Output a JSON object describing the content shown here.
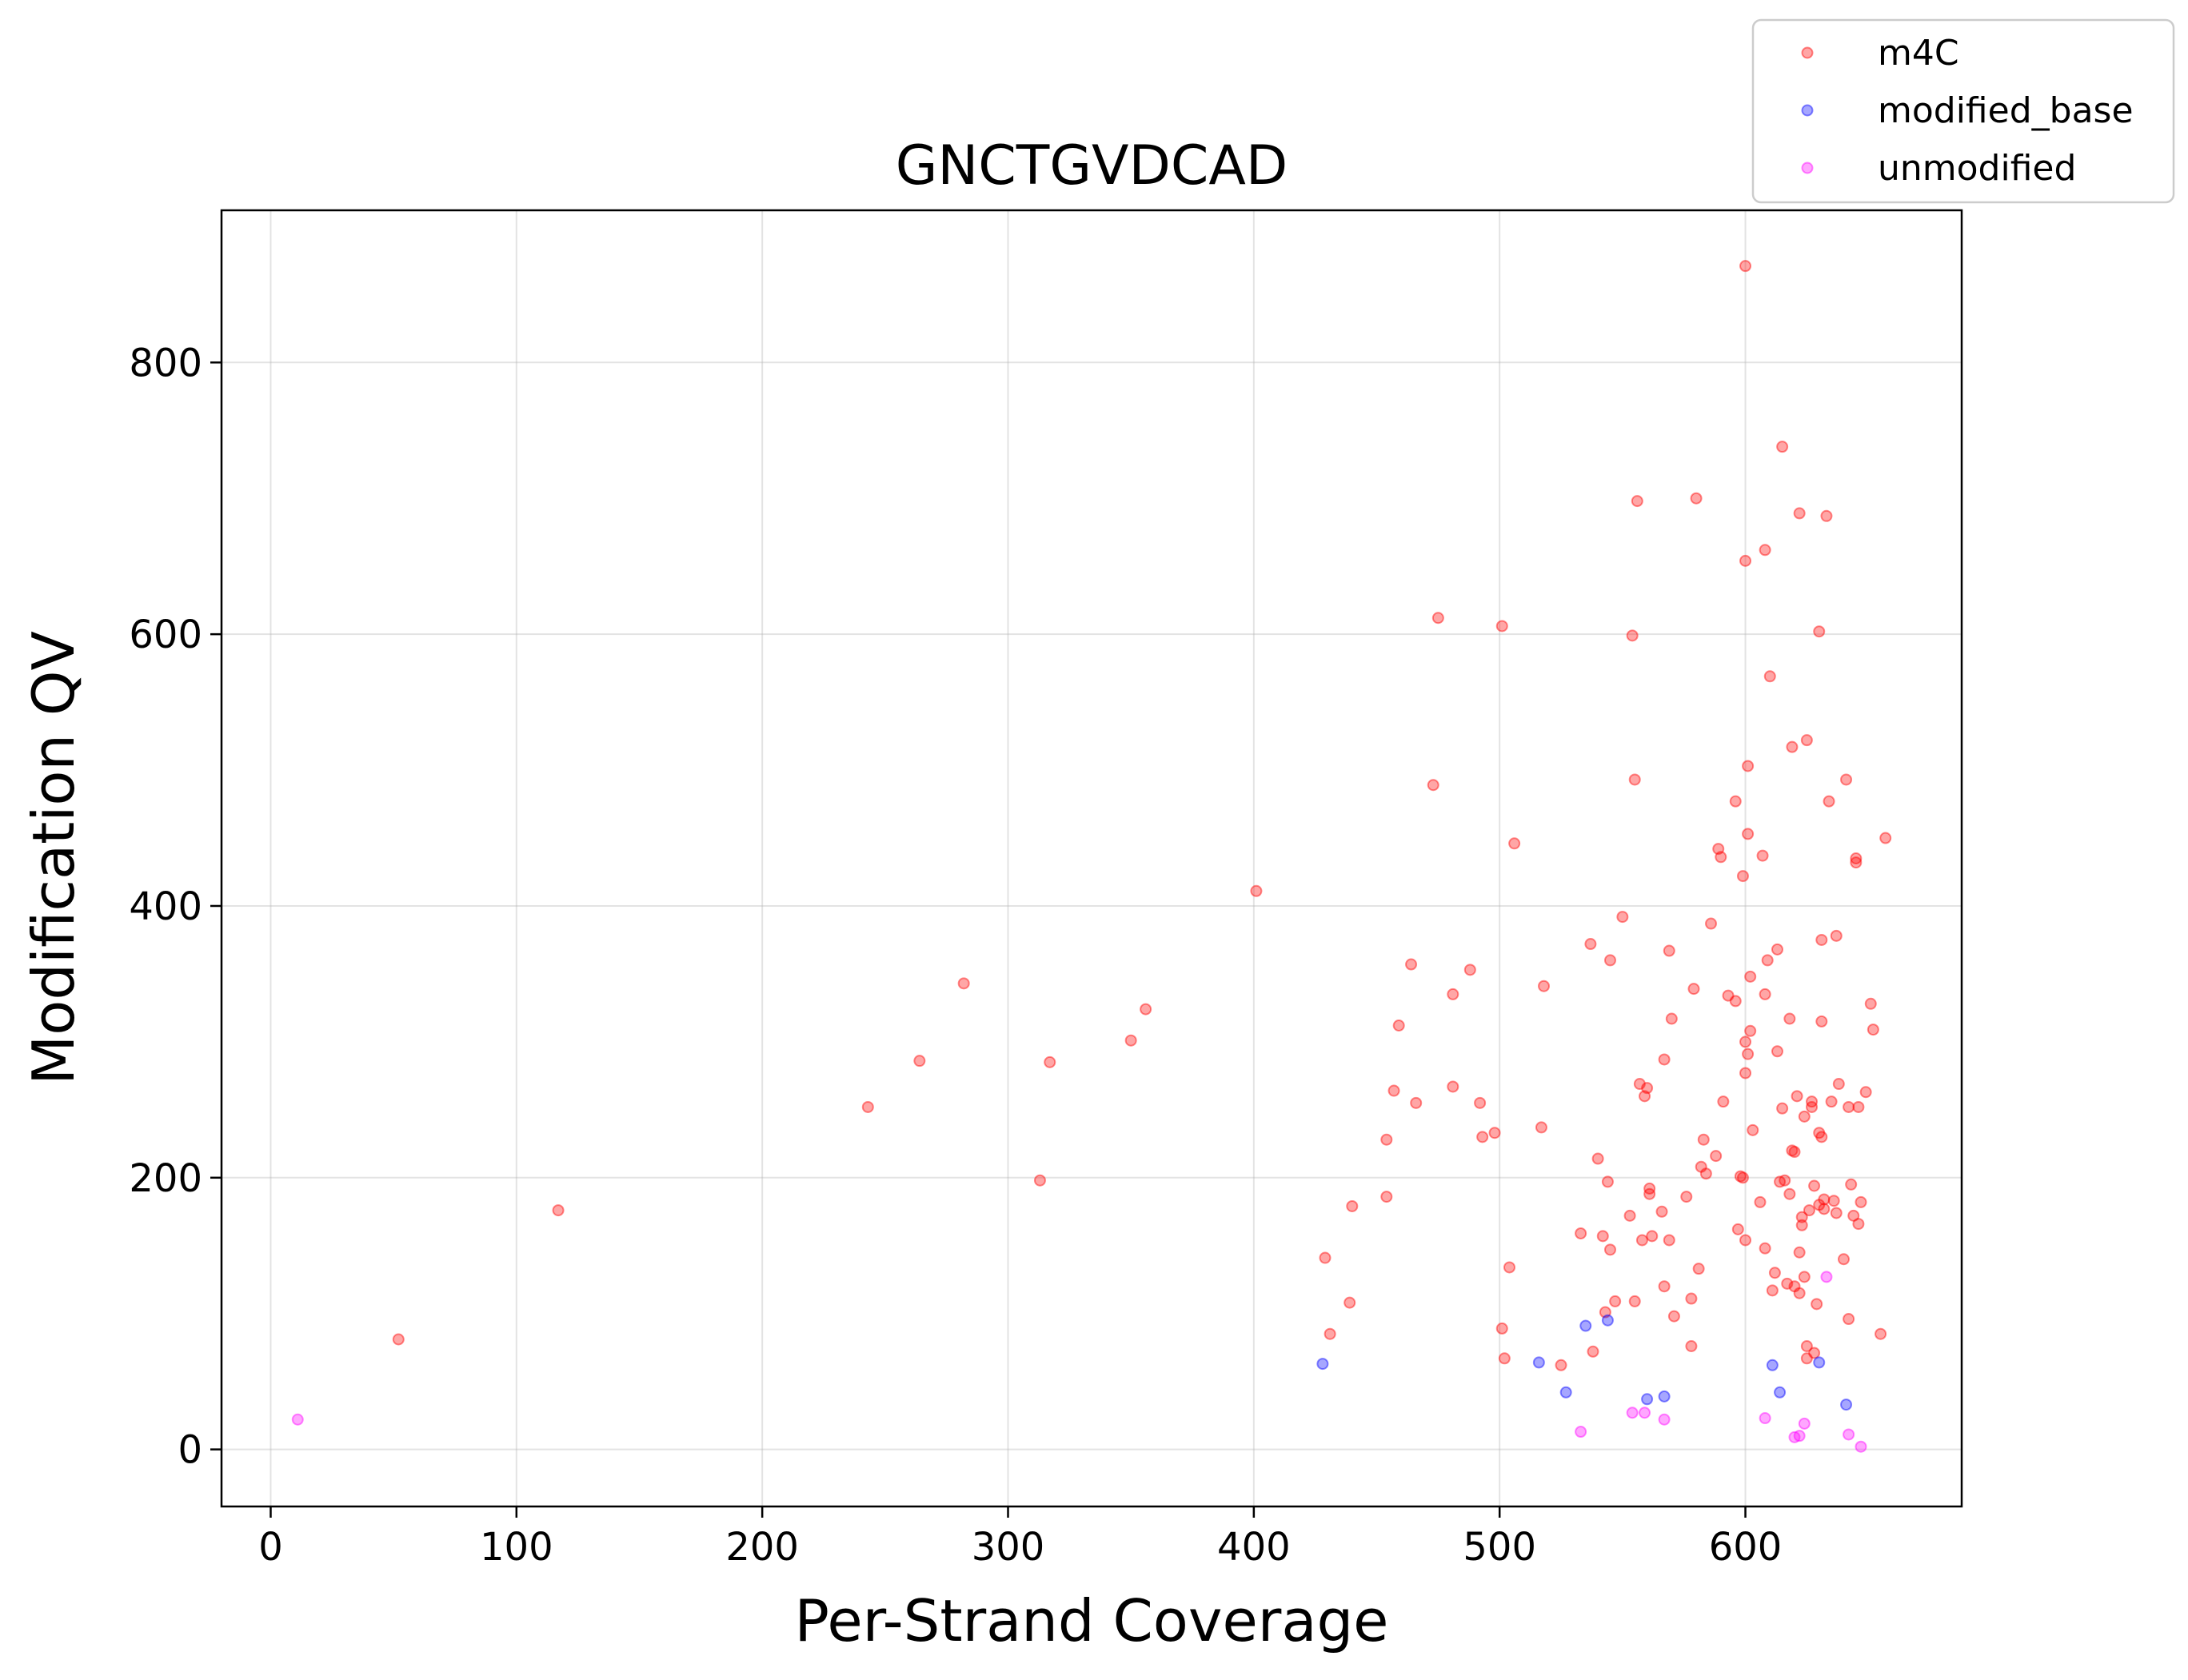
{
  "chart_data": {
    "type": "scatter",
    "title": "GNCTGVDCAD",
    "xlabel": "Per-Strand Coverage",
    "ylabel": "Modification QV",
    "xlim": [
      -20,
      688
    ],
    "ylim": [
      -42,
      912
    ],
    "xticks": [
      0,
      100,
      200,
      300,
      400,
      500,
      600
    ],
    "yticks": [
      0,
      200,
      400,
      600,
      800
    ],
    "grid": true,
    "legend_position": "top-right (outside axes)",
    "series": [
      {
        "name": "m4C",
        "color": "#ff0000",
        "points": [
          [
            52,
            81
          ],
          [
            117,
            176
          ],
          [
            243,
            252
          ],
          [
            264,
            286
          ],
          [
            282,
            343
          ],
          [
            313,
            198
          ],
          [
            317,
            285
          ],
          [
            350,
            301
          ],
          [
            356,
            324
          ],
          [
            401,
            411
          ],
          [
            429,
            141
          ],
          [
            431,
            85
          ],
          [
            439,
            108
          ],
          [
            440,
            179
          ],
          [
            454,
            228
          ],
          [
            454,
            186
          ],
          [
            457,
            264
          ],
          [
            459,
            312
          ],
          [
            464,
            357
          ],
          [
            466,
            255
          ],
          [
            473,
            489
          ],
          [
            475,
            612
          ],
          [
            481,
            335
          ],
          [
            481,
            267
          ],
          [
            488,
            353
          ],
          [
            492,
            255
          ],
          [
            493,
            230
          ],
          [
            498,
            233
          ],
          [
            501,
            606
          ],
          [
            501,
            89
          ],
          [
            502,
            67
          ],
          [
            504,
            134
          ],
          [
            506,
            446
          ],
          [
            517,
            237
          ],
          [
            518,
            341
          ],
          [
            525,
            62
          ],
          [
            533,
            159
          ],
          [
            537,
            372
          ],
          [
            538,
            72
          ],
          [
            540,
            214
          ],
          [
            542,
            157
          ],
          [
            543,
            101
          ],
          [
            544,
            197
          ],
          [
            545,
            360
          ],
          [
            545,
            147
          ],
          [
            547,
            109
          ],
          [
            550,
            392
          ],
          [
            553,
            172
          ],
          [
            554,
            599
          ],
          [
            555,
            493
          ],
          [
            555,
            109
          ],
          [
            556,
            698
          ],
          [
            557,
            269
          ],
          [
            558,
            154
          ],
          [
            559,
            260
          ],
          [
            560,
            266
          ],
          [
            561,
            192
          ],
          [
            561,
            188
          ],
          [
            562,
            157
          ],
          [
            566,
            175
          ],
          [
            567,
            120
          ],
          [
            567,
            287
          ],
          [
            569,
            367
          ],
          [
            569,
            154
          ],
          [
            570,
            317
          ],
          [
            571,
            98
          ],
          [
            576,
            186
          ],
          [
            578,
            76
          ],
          [
            578,
            111
          ],
          [
            579,
            339
          ],
          [
            580,
            700
          ],
          [
            581,
            133
          ],
          [
            582,
            208
          ],
          [
            583,
            228
          ],
          [
            584,
            203
          ],
          [
            586,
            387
          ],
          [
            588,
            216
          ],
          [
            589,
            442
          ],
          [
            590,
            436
          ],
          [
            591,
            256
          ],
          [
            593,
            334
          ],
          [
            596,
            477
          ],
          [
            596,
            330
          ],
          [
            597,
            162
          ],
          [
            598,
            201
          ],
          [
            599,
            422
          ],
          [
            599,
            200
          ],
          [
            600,
            871
          ],
          [
            600,
            654
          ],
          [
            600,
            300
          ],
          [
            600,
            277
          ],
          [
            600,
            154
          ],
          [
            601,
            291
          ],
          [
            601,
            503
          ],
          [
            601,
            453
          ],
          [
            602,
            348
          ],
          [
            602,
            308
          ],
          [
            603,
            235
          ],
          [
            606,
            182
          ],
          [
            607,
            437
          ],
          [
            608,
            662
          ],
          [
            608,
            335
          ],
          [
            608,
            148
          ],
          [
            609,
            360
          ],
          [
            610,
            569
          ],
          [
            611,
            117
          ],
          [
            612,
            130
          ],
          [
            613,
            368
          ],
          [
            613,
            293
          ],
          [
            614,
            197
          ],
          [
            615,
            738
          ],
          [
            615,
            251
          ],
          [
            616,
            198
          ],
          [
            617,
            122
          ],
          [
            618,
            317
          ],
          [
            618,
            188
          ],
          [
            619,
            517
          ],
          [
            619,
            220
          ],
          [
            620,
            219
          ],
          [
            620,
            120
          ],
          [
            621,
            260
          ],
          [
            622,
            689
          ],
          [
            622,
            145
          ],
          [
            622,
            115
          ],
          [
            623,
            171
          ],
          [
            623,
            165
          ],
          [
            624,
            127
          ],
          [
            624,
            245
          ],
          [
            625,
            522
          ],
          [
            625,
            76
          ],
          [
            625,
            67
          ],
          [
            626,
            176
          ],
          [
            627,
            256
          ],
          [
            627,
            252
          ],
          [
            628,
            194
          ],
          [
            628,
            71
          ],
          [
            629,
            107
          ],
          [
            630,
            602
          ],
          [
            630,
            233
          ],
          [
            630,
            180
          ],
          [
            631,
            375
          ],
          [
            631,
            230
          ],
          [
            631,
            315
          ],
          [
            632,
            177
          ],
          [
            632,
            184
          ],
          [
            633,
            687
          ],
          [
            634,
            477
          ],
          [
            635,
            256
          ],
          [
            636,
            183
          ],
          [
            637,
            378
          ],
          [
            637,
            174
          ],
          [
            638,
            269
          ],
          [
            640,
            140
          ],
          [
            641,
            493
          ],
          [
            642,
            252
          ],
          [
            642,
            96
          ],
          [
            643,
            195
          ],
          [
            644,
            172
          ],
          [
            645,
            435
          ],
          [
            645,
            432
          ],
          [
            646,
            252
          ],
          [
            646,
            166
          ],
          [
            647,
            182
          ],
          [
            649,
            263
          ],
          [
            651,
            328
          ],
          [
            652,
            309
          ],
          [
            655,
            85
          ],
          [
            657,
            450
          ]
        ]
      },
      {
        "name": "modified_base",
        "color": "#0000ff",
        "points": [
          [
            428,
            63
          ],
          [
            516,
            64
          ],
          [
            527,
            42
          ],
          [
            535,
            91
          ],
          [
            544,
            95
          ],
          [
            560,
            37
          ],
          [
            567,
            39
          ],
          [
            611,
            62
          ],
          [
            614,
            42
          ],
          [
            630,
            64
          ],
          [
            641,
            33
          ]
        ]
      },
      {
        "name": "unmodified",
        "color": "#ff00ff",
        "points": [
          [
            11,
            22
          ],
          [
            533,
            13
          ],
          [
            554,
            27
          ],
          [
            559,
            27
          ],
          [
            567,
            22
          ],
          [
            608,
            23
          ],
          [
            620,
            9
          ],
          [
            622,
            10
          ],
          [
            624,
            19
          ],
          [
            633,
            127
          ],
          [
            642,
            11
          ],
          [
            647,
            2
          ]
        ]
      }
    ]
  }
}
